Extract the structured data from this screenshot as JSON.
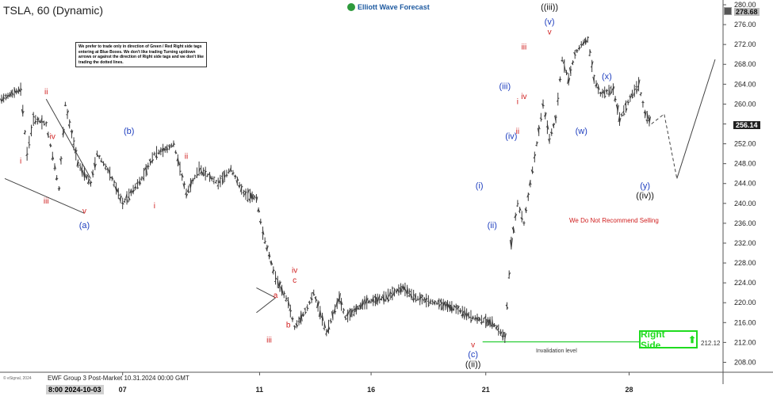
{
  "header": {
    "symbol_title": "TSLA, 60 (Dynamic)",
    "brand": "Elliott Wave Forecast"
  },
  "notice": "We prefer to trade only in direction of Green / Red Right side tags entering at Blue Boxes. We don't like trading Turning up/down arrows or against the direction of Right side tags and we don't like trading the dotted lines.",
  "footer": {
    "caption": "EWF Group 3 Post-Market 10.31.2024 00:00 GMT",
    "copyright": "© eSignal, 2024"
  },
  "annotations": {
    "right_side_tag": "Right Side",
    "invalidation": "Invalidation level",
    "no_sell": "We Do Not Recommend Selling",
    "invalidation_price": "212.12"
  },
  "price_axis": {
    "last_price_tag": "256.14",
    "top_price_tag": "278.68"
  },
  "time_axis": {
    "cursor_label": "8:00 2024-10-03"
  },
  "colors": {
    "background": "#ffffff",
    "bars": "#3a3a3a",
    "wave_blue": "#1f3fbf",
    "wave_red": "#d02020",
    "wave_black": "#111111",
    "right_side_green": "#1fdc1f",
    "invalidation_line": "#2fcf3a"
  },
  "chart_data": {
    "type": "ohlc",
    "interval": "60",
    "ylim": [
      206,
      280
    ],
    "y_ticks": [
      208,
      212,
      216,
      220,
      224,
      228,
      232,
      236,
      240,
      244,
      248,
      252,
      256,
      260,
      264,
      268,
      272,
      276,
      280
    ],
    "x_ticks": [
      "07",
      "11",
      "16",
      "21",
      "28"
    ],
    "invalidation_level": 212.12,
    "last_price": 256.14,
    "price_path": [
      {
        "x": 0,
        "y": 261
      },
      {
        "x": 3,
        "y": 263
      },
      {
        "x": 4,
        "y": 250
      },
      {
        "x": 5,
        "y": 257
      },
      {
        "x": 7,
        "y": 256
      },
      {
        "x": 9,
        "y": 243
      },
      {
        "x": 10,
        "y": 260
      },
      {
        "x": 12,
        "y": 248
      },
      {
        "x": 14,
        "y": 244
      },
      {
        "x": 15,
        "y": 250
      },
      {
        "x": 17,
        "y": 246
      },
      {
        "x": 19,
        "y": 240
      },
      {
        "x": 22,
        "y": 245
      },
      {
        "x": 24,
        "y": 250
      },
      {
        "x": 26,
        "y": 251
      },
      {
        "x": 27,
        "y": 252
      },
      {
        "x": 29,
        "y": 242
      },
      {
        "x": 31,
        "y": 247
      },
      {
        "x": 34,
        "y": 244
      },
      {
        "x": 36,
        "y": 247
      },
      {
        "x": 38,
        "y": 242
      },
      {
        "x": 40,
        "y": 241
      },
      {
        "x": 41,
        "y": 234
      },
      {
        "x": 43,
        "y": 225
      },
      {
        "x": 45,
        "y": 220
      },
      {
        "x": 46,
        "y": 215
      },
      {
        "x": 48,
        "y": 219
      },
      {
        "x": 49,
        "y": 222
      },
      {
        "x": 51,
        "y": 214
      },
      {
        "x": 53,
        "y": 221
      },
      {
        "x": 54,
        "y": 217
      },
      {
        "x": 57,
        "y": 220
      },
      {
        "x": 60,
        "y": 221
      },
      {
        "x": 63,
        "y": 223
      },
      {
        "x": 65,
        "y": 221
      },
      {
        "x": 68,
        "y": 220
      },
      {
        "x": 71,
        "y": 219
      },
      {
        "x": 74,
        "y": 217
      },
      {
        "x": 77,
        "y": 216
      },
      {
        "x": 79,
        "y": 213
      },
      {
        "x": 80,
        "y": 232
      },
      {
        "x": 81,
        "y": 240
      },
      {
        "x": 82,
        "y": 236
      },
      {
        "x": 83,
        "y": 244
      },
      {
        "x": 85,
        "y": 260
      },
      {
        "x": 86,
        "y": 253
      },
      {
        "x": 87,
        "y": 257
      },
      {
        "x": 88,
        "y": 269
      },
      {
        "x": 89,
        "y": 265
      },
      {
        "x": 90,
        "y": 270
      },
      {
        "x": 91,
        "y": 272
      },
      {
        "x": 92,
        "y": 273
      },
      {
        "x": 93,
        "y": 265
      },
      {
        "x": 94,
        "y": 262
      },
      {
        "x": 96,
        "y": 263
      },
      {
        "x": 97,
        "y": 257
      },
      {
        "x": 99,
        "y": 262
      },
      {
        "x": 100,
        "y": 264
      },
      {
        "x": 101,
        "y": 258
      },
      {
        "x": 102,
        "y": 256
      }
    ],
    "projection": [
      {
        "x": 102,
        "y": 256
      },
      {
        "x": 104,
        "y": 258
      },
      {
        "x": 106,
        "y": 245
      },
      {
        "x": 112,
        "y": 269
      }
    ],
    "wave_labels": [
      {
        "text": "i",
        "x": 3,
        "y": 248,
        "color": "red"
      },
      {
        "text": "ii",
        "x": 7,
        "y": 262,
        "color": "red"
      },
      {
        "text": "iii",
        "x": 7,
        "y": 240,
        "color": "red"
      },
      {
        "text": "iv",
        "x": 8,
        "y": 253,
        "color": "red"
      },
      {
        "text": "v",
        "x": 13,
        "y": 238,
        "color": "red"
      },
      {
        "text": "(a)",
        "x": 13,
        "y": 235,
        "color": "blue"
      },
      {
        "text": "(b)",
        "x": 20,
        "y": 254,
        "color": "blue"
      },
      {
        "text": "i",
        "x": 24,
        "y": 239,
        "color": "red"
      },
      {
        "text": "ii",
        "x": 29,
        "y": 249,
        "color": "red"
      },
      {
        "text": "iv",
        "x": 46,
        "y": 226,
        "color": "red"
      },
      {
        "text": "c",
        "x": 46,
        "y": 224,
        "color": "red"
      },
      {
        "text": "a",
        "x": 43,
        "y": 221,
        "color": "red"
      },
      {
        "text": "b",
        "x": 45,
        "y": 215,
        "color": "red"
      },
      {
        "text": "iii",
        "x": 42,
        "y": 212,
        "color": "red"
      },
      {
        "text": "v",
        "x": 74,
        "y": 211,
        "color": "red"
      },
      {
        "text": "(c)",
        "x": 74,
        "y": 209,
        "color": "blue"
      },
      {
        "text": "((ii))",
        "x": 74,
        "y": 207,
        "color": "black"
      },
      {
        "text": "(i)",
        "x": 75,
        "y": 243,
        "color": "blue"
      },
      {
        "text": "(ii)",
        "x": 77,
        "y": 235,
        "color": "blue"
      },
      {
        "text": "(iii)",
        "x": 79,
        "y": 263,
        "color": "blue"
      },
      {
        "text": "(iv)",
        "x": 80,
        "y": 253,
        "color": "blue"
      },
      {
        "text": "i",
        "x": 81,
        "y": 260,
        "color": "red"
      },
      {
        "text": "ii",
        "x": 81,
        "y": 254,
        "color": "red"
      },
      {
        "text": "iii",
        "x": 82,
        "y": 271,
        "color": "red"
      },
      {
        "text": "iv",
        "x": 82,
        "y": 261,
        "color": "red"
      },
      {
        "text": "v",
        "x": 86,
        "y": 274,
        "color": "red"
      },
      {
        "text": "(v)",
        "x": 86,
        "y": 276,
        "color": "blue"
      },
      {
        "text": "((iii))",
        "x": 86,
        "y": 279,
        "color": "black"
      },
      {
        "text": "(w)",
        "x": 91,
        "y": 254,
        "color": "blue"
      },
      {
        "text": "(x)",
        "x": 95,
        "y": 265,
        "color": "blue"
      },
      {
        "text": "(y)",
        "x": 101,
        "y": 243,
        "color": "blue"
      },
      {
        "text": "((iv))",
        "x": 101,
        "y": 241,
        "color": "black"
      }
    ]
  }
}
